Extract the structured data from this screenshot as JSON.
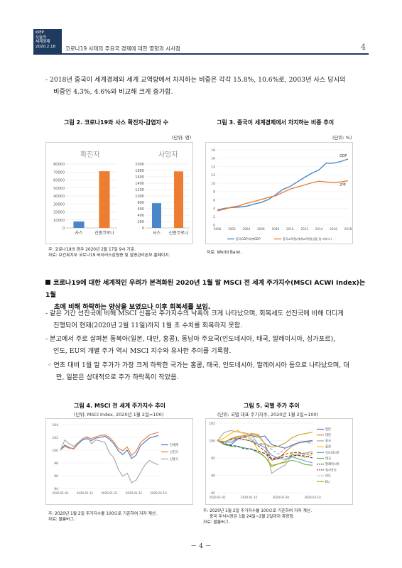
{
  "header": {
    "org_lines": [
      "KIEP",
      "오늘의",
      "세계경제",
      "2020.2.18"
    ],
    "title": "코로나19 사태의 주요국 경제에 대한 영향과 시사점",
    "page_number": "4"
  },
  "para1": {
    "line1": "- 2018년 중국이 세계경제와 세계 교역량에서 차지하는 비중은 각각 15.8%, 10.6%로, 2003년 사스 당시의",
    "line2": "비중인 4.3%, 4.6%와 비교해 크게 증가함."
  },
  "fig2": {
    "title": "그림 2. 코로나19와 사스 확진자·감염자 수",
    "unit": "(단위: 명)",
    "note1": "주: 코로나19의 경우 2020년 2월 17일 9시 기준.",
    "note2": "자료: 보건복지부 코로나19 바이러스감염증 및 질병관리본부 홈페이지."
  },
  "fig3": {
    "title": "그림 3. 중국이 세계경제에서 차지하는 비중 추이",
    "unit": "(단위: %)",
    "source": "자료: World Bank."
  },
  "bullet": {
    "line1": "코로나19에 대한 세계적인 우려가 본격화된 2020년 1월 말 MSCI 전 세계 주가지수(MSCI ACWI Index)는 1월",
    "line2": "초에 비해 하락하는 양상을 보였으나 이후 회복세를 보임."
  },
  "para2": {
    "line1": "- 같은 기간 선진국에 비해 MSCI 신흥국 주가지수의 낙폭이 크게 나타났으며, 회복세도 선진국에 비해 더디게",
    "line2": "진행되어 현재(2020년 2월 11일)까지 1월 초 수치를 회복하지 못함."
  },
  "para3": {
    "line1": "- 본고에서 주로 살펴본 동북아(일본, 대만, 홍콩), 동남아 주요국(인도네시아, 태국, 말레이시아, 싱가포르),",
    "line2": "인도, EU의 개별 주가 역시 MSCI 지수와 유사한 추이를 기록함."
  },
  "para4": {
    "line1": "◦ 연초 대비 1월 말 주가가 가장 크게 하락한 국가는 홍콩, 태국, 인도네시아, 말레이시아 등으로 나타났으며, 대",
    "line2": "만, 일본은 상대적으로 주가 하락폭이 작았음."
  },
  "fig4": {
    "title": "그림 4. MSCI 전 세계 주가지수 추이",
    "unit": "(단위: MSCI Index, 2020년 1월 2일=100)",
    "note1": "주: 2020년 1월 2일 주가지수를 100으로 기준하여 저자 계산.",
    "note2": "자료: 블룸버그."
  },
  "fig5": {
    "title": "그림 5. 국별 주가 추이",
    "unit": "(단위: 국별 대표 주가지수, 2020년 1월 2일=100)",
    "note1": "주: 2020년 1월 2일 주가지수를 100으로 기준하여 저자 계산.",
    "note2": "중국 주식시장은 1월 24일~2월 2일까지 휴장함.",
    "note3": "자료: 블룸버그."
  },
  "footer": {
    "page": "－ 4 －"
  },
  "chart_data": [
    {
      "id": "fig2",
      "type": "bar",
      "panels": [
        {
          "title": "확진자",
          "categories": [
            "사스",
            "신종코로나"
          ],
          "values": [
            8100,
            71000
          ],
          "yticks": [
            0,
            10000,
            20000,
            30000,
            40000,
            50000,
            60000,
            70000,
            80000
          ],
          "ylim": [
            0,
            80000
          ]
        },
        {
          "title": "사망자",
          "categories": [
            "사스",
            "신종코로나"
          ],
          "values": [
            774,
            1770
          ],
          "yticks": [
            0,
            200,
            400,
            600,
            800,
            1000,
            1200,
            1400,
            1600,
            1800,
            2000
          ],
          "ylim": [
            0,
            2000
          ]
        }
      ],
      "colors": {
        "bar_sars": "#4a86c8",
        "bar_covid": "#ed7d31",
        "title": "#9a9a9a"
      }
    },
    {
      "id": "fig3",
      "type": "line",
      "x": [
        2000,
        2001,
        2002,
        2003,
        2004,
        2005,
        2006,
        2007,
        2008,
        2009,
        2010,
        2011,
        2012,
        2013,
        2014,
        2015,
        2016,
        2017,
        2018
      ],
      "xticks": [
        2000,
        2002,
        2004,
        2006,
        2008,
        2010,
        2012,
        2014,
        2016,
        2018
      ],
      "ylim": [
        0,
        18
      ],
      "yticks": [
        0,
        2,
        4,
        6,
        8,
        10,
        12,
        14,
        16,
        18
      ],
      "series": [
        {
          "name": "중국GDP/세계GDP",
          "label": "GDP",
          "color": "#4a86c8",
          "values": [
            3.6,
            4.0,
            4.2,
            4.3,
            4.5,
            5.0,
            5.4,
            6.1,
            7.2,
            8.5,
            9.2,
            10.3,
            11.4,
            12.4,
            13.2,
            14.8,
            14.8,
            15.2,
            15.8
          ]
        },
        {
          "name": "중국교역량/세계교역량(상품 및 서비스)",
          "label": "교역",
          "color": "#ed7d31",
          "values": [
            3.4,
            3.8,
            4.3,
            4.6,
            5.2,
            5.6,
            6.1,
            6.6,
            7.0,
            7.8,
            8.6,
            9.1,
            9.6,
            10.1,
            10.5,
            10.3,
            10.2,
            10.3,
            10.6
          ]
        }
      ]
    },
    {
      "id": "fig4",
      "type": "line",
      "xticks": [
        "2020-01-01",
        "2020-01-11",
        "2020-01-21",
        "2020-01-31",
        "2020-02-10"
      ],
      "ylim": [
        94,
        104
      ],
      "yticks": [
        94,
        96,
        98,
        100,
        102,
        104
      ],
      "series": [
        {
          "name": "전세계",
          "color": "#4472c4",
          "values": [
            100,
            100.8,
            100.4,
            100.2,
            101.0,
            101.6,
            101.8,
            101.5,
            101.9,
            102.0,
            102.2,
            101.7,
            101.0,
            99.9,
            99.3,
            100.0,
            98.7,
            99.2,
            100.7,
            101.3,
            101.9,
            102.1,
            102.3
          ]
        },
        {
          "name": "선진국",
          "color": "#ed7d31",
          "values": [
            100,
            100.6,
            100.3,
            100.3,
            101.1,
            101.8,
            102.0,
            101.8,
            102.1,
            102.3,
            102.4,
            102.0,
            101.3,
            100.3,
            99.9,
            100.5,
            99.2,
            99.8,
            101.2,
            101.8,
            102.4,
            102.6,
            102.8
          ]
        },
        {
          "name": "신흥국",
          "color": "#a5a5a5",
          "values": [
            100,
            101.6,
            101.0,
            100.6,
            101.2,
            101.8,
            102.1,
            101.0,
            101.6,
            101.4,
            101.2,
            99.6,
            98.8,
            97.0,
            95.9,
            96.4,
            94.9,
            95.3,
            96.5,
            97.7,
            98.4,
            98.0,
            97.7
          ]
        }
      ]
    },
    {
      "id": "fig5",
      "type": "line",
      "xticks": [
        "2020-01-02",
        "2020-01-15",
        "2020-01-28",
        "2020-02-10"
      ],
      "ylim": [
        85,
        105
      ],
      "yticks": [
        85,
        90,
        95,
        100,
        105
      ],
      "series": [
        {
          "name": "일본",
          "color": "#4472c4",
          "dash": "",
          "values": [
            100,
            99,
            98.8,
            100.4,
            101.2,
            101.4,
            101.0,
            101.3,
            98.8,
            98.3,
            97.8,
            98.7,
            99.5,
            99.8,
            100.0
          ]
        },
        {
          "name": "대만",
          "color": "#ed7d31",
          "dash": "",
          "values": [
            100,
            99.5,
            100.6,
            101.2,
            101.4,
            102.0,
            101.8,
            99.0,
            94.3,
            94.8,
            96.8,
            98.4,
            99.3,
            99.6,
            99.8
          ]
        },
        {
          "name": "중국",
          "color": "#a5a5a5",
          "dash": "",
          "values": [
            100,
            102.3,
            102.9,
            102.5,
            102.2,
            101.7,
            98.9,
            98.9,
            90.6,
            91.9,
            93.0,
            95.9,
            96.2,
            96.4,
            96.9
          ]
        },
        {
          "name": "홍콩",
          "color": "#ffc000",
          "dash": "",
          "values": [
            100,
            100.7,
            102.1,
            102.9,
            101.8,
            100.6,
            97.2,
            95.3,
            92.9,
            93.3,
            94.1,
            96.2,
            95.6,
            95.2,
            96.0
          ]
        },
        {
          "name": "인도네시아",
          "color": "#5b9bd5",
          "dash": "",
          "values": [
            100,
            99.7,
            99.5,
            100.6,
            100.3,
            99.8,
            99.0,
            98.0,
            95.8,
            94.9,
            94.6,
            95.3,
            94.7,
            94.1,
            93.6
          ]
        },
        {
          "name": "태국",
          "color": "#70ad47",
          "dash": "",
          "values": [
            100,
            98.8,
            98.4,
            98.2,
            97.9,
            97.5,
            96.6,
            95.3,
            92.6,
            93.3,
            93.8,
            94.3,
            93.8,
            93.1,
            92.9
          ]
        },
        {
          "name": "말레이시아",
          "color": "#264478",
          "dash": "4,2",
          "values": [
            100,
            99.2,
            98.6,
            98.4,
            97.6,
            97.6,
            96.9,
            96.3,
            94.6,
            94.9,
            95.4,
            95.6,
            95.8,
            95.5,
            95.0
          ]
        },
        {
          "name": "싱가포르",
          "color": "#9e480e",
          "dash": "4,2",
          "values": [
            100,
            99.6,
            100.2,
            100.7,
            100.3,
            99.8,
            98.5,
            97.0,
            94.8,
            95.2,
            96.1,
            96.5,
            96.6,
            96.0,
            96.4
          ]
        },
        {
          "name": "인도",
          "color": "#8faadc",
          "dash": "4,2",
          "values": [
            100,
            99.0,
            100.6,
            101.1,
            100.9,
            100.3,
            99.0,
            99.2,
            97.4,
            96.1,
            97.8,
            98.5,
            99.3,
            99.6,
            99.0
          ]
        },
        {
          "name": "EU",
          "color": "#c9a227",
          "dash": "",
          "values": [
            100,
            99.6,
            100.4,
            101.0,
            100.9,
            101.7,
            101.4,
            99.1,
            98.1,
            98.4,
            99.3,
            100.8,
            101.7,
            102.0,
            102.4
          ]
        }
      ]
    }
  ]
}
